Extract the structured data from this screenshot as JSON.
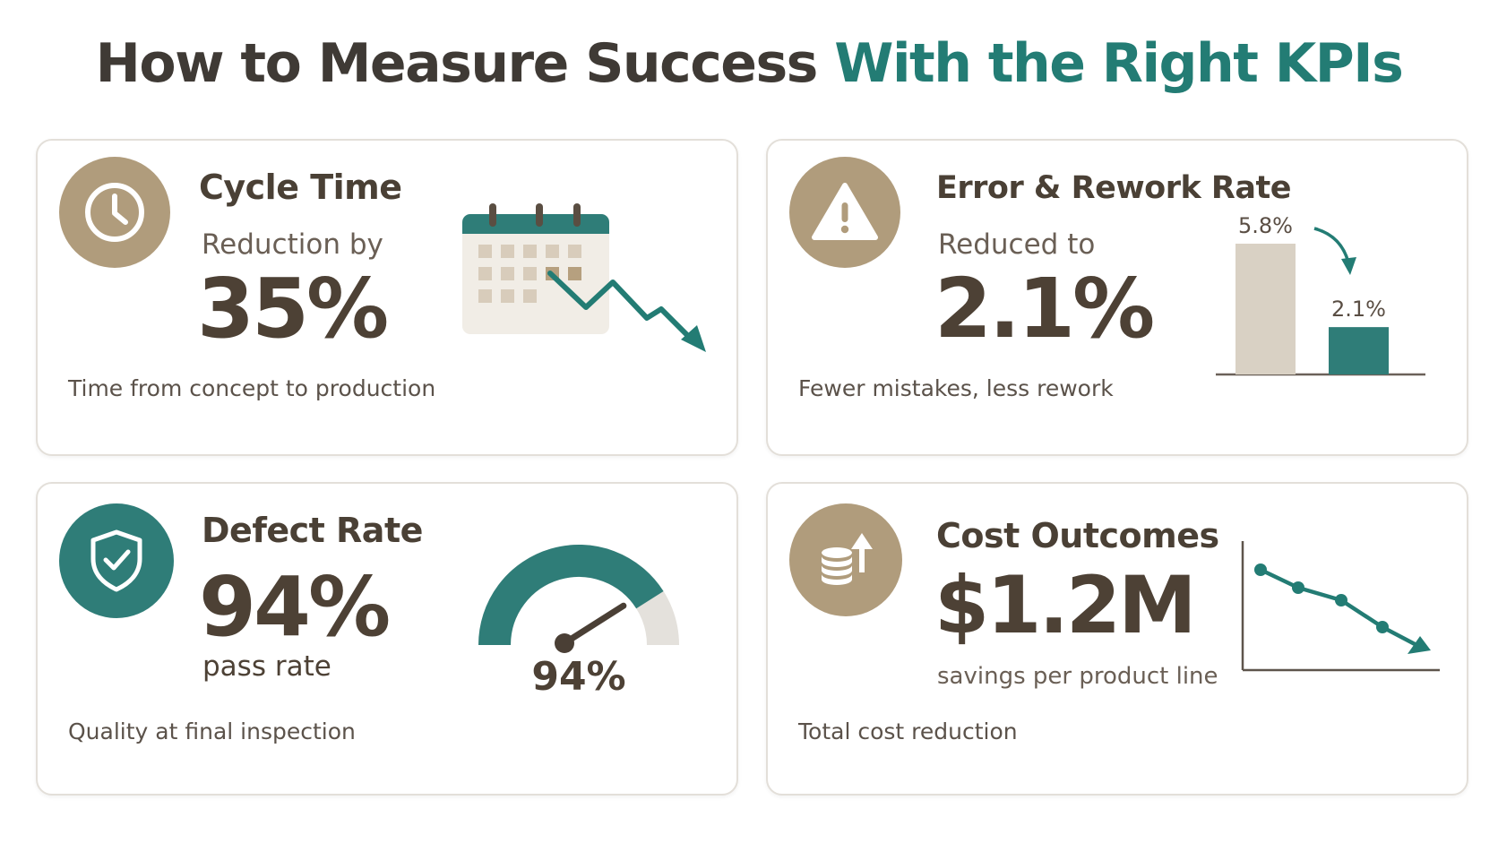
{
  "header": {
    "title_main": "How to Measure Success",
    "title_accent": "With the Right KPIs"
  },
  "colors": {
    "tan": "#b09c7c",
    "teal": "#2f7d78",
    "dark_text": "#4a4035",
    "light_bar": "#d9d1c4",
    "gauge_rest": "#e4e1dc"
  },
  "cards": [
    {
      "title": "Cycle Time",
      "subtitle": "Reduction by",
      "value": "35%",
      "footer": "Time from concept to production",
      "icon": "clock-icon"
    },
    {
      "title": "Error & Rework Rate",
      "subtitle": "Reduced to",
      "value": "2.1%",
      "footer": "Fewer mistakes, less rework",
      "icon": "warning-icon"
    },
    {
      "title": "Defect Rate",
      "value": "94%",
      "subtitle": "pass rate",
      "footer": "Quality at final inspection",
      "icon": "shield-check-icon"
    },
    {
      "title": "Cost Outcomes",
      "value": "$1.2M",
      "subtitle": "savings per product line",
      "footer": "Total cost reduction",
      "icon": "coins-arrow-up-icon"
    }
  ],
  "error_bars": {
    "labels": [
      "5.8%",
      "2.1%"
    ],
    "values": [
      5.8,
      2.1
    ]
  },
  "gauge": {
    "label": "94%",
    "value": 0.94
  }
}
